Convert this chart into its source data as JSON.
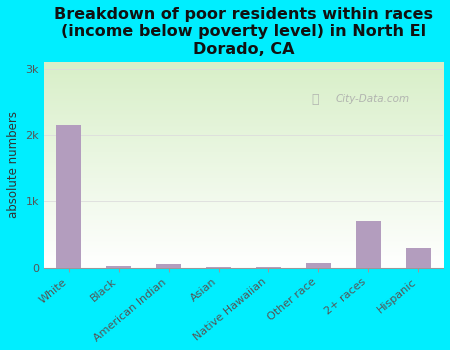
{
  "title": "Breakdown of poor residents within races\n(income below poverty level) in North El\nDorado, CA",
  "categories": [
    "White",
    "Black",
    "American Indian",
    "Asian",
    "Native Hawaiian",
    "Other race",
    "2+ races",
    "Hispanic"
  ],
  "values": [
    2150,
    30,
    60,
    10,
    5,
    75,
    700,
    290
  ],
  "bar_color": "#b39dbe",
  "ylabel": "absolute numbers",
  "yticks": [
    0,
    1000,
    2000,
    3000
  ],
  "ytick_labels": [
    "0",
    "1k",
    "2k",
    "3k"
  ],
  "ylim": [
    0,
    3100
  ],
  "background_color": "#00eeff",
  "plot_bg_color_top": "#d8efc8",
  "plot_bg_color_bottom": "#ffffff",
  "grid_color": "#dddddd",
  "watermark": "City-Data.com",
  "title_fontsize": 11.5,
  "label_fontsize": 8.5,
  "tick_label_fontsize": 8
}
